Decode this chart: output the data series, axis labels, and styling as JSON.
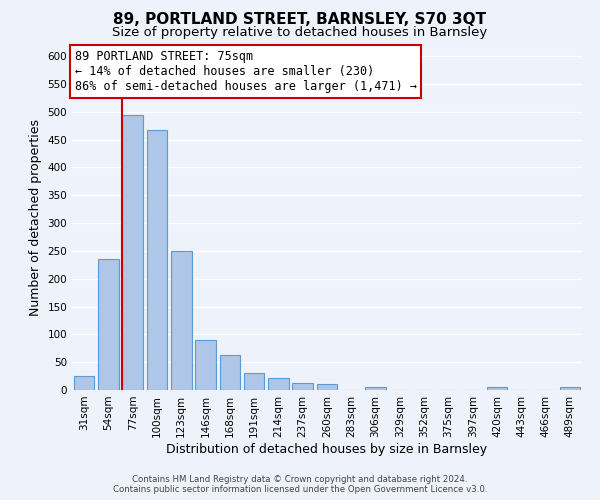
{
  "title": "89, PORTLAND STREET, BARNSLEY, S70 3QT",
  "subtitle": "Size of property relative to detached houses in Barnsley",
  "xlabel": "Distribution of detached houses by size in Barnsley",
  "ylabel": "Number of detached properties",
  "bar_labels": [
    "31sqm",
    "54sqm",
    "77sqm",
    "100sqm",
    "123sqm",
    "146sqm",
    "168sqm",
    "191sqm",
    "214sqm",
    "237sqm",
    "260sqm",
    "283sqm",
    "306sqm",
    "329sqm",
    "352sqm",
    "375sqm",
    "397sqm",
    "420sqm",
    "443sqm",
    "466sqm",
    "489sqm"
  ],
  "bar_values": [
    25,
    235,
    495,
    468,
    250,
    90,
    63,
    30,
    22,
    13,
    10,
    0,
    5,
    0,
    0,
    0,
    0,
    5,
    0,
    0,
    5
  ],
  "bar_color": "#aec6e8",
  "bar_edge_color": "#5b9bd5",
  "highlight_bar_index": 2,
  "marker_line_color": "#cc0000",
  "ylim": [
    0,
    620
  ],
  "yticks": [
    0,
    50,
    100,
    150,
    200,
    250,
    300,
    350,
    400,
    450,
    500,
    550,
    600
  ],
  "annotation_line1": "89 PORTLAND STREET: 75sqm",
  "annotation_line2": "← 14% of detached houses are smaller (230)",
  "annotation_line3": "86% of semi-detached houses are larger (1,471) →",
  "footer_text": "Contains HM Land Registry data © Crown copyright and database right 2024.\nContains public sector information licensed under the Open Government Licence v3.0.",
  "background_color": "#eef2fa",
  "grid_color": "#ffffff",
  "title_fontsize": 11,
  "subtitle_fontsize": 9.5,
  "axis_label_fontsize": 9,
  "tick_fontsize": 7.5,
  "annotation_fontsize": 8.5
}
